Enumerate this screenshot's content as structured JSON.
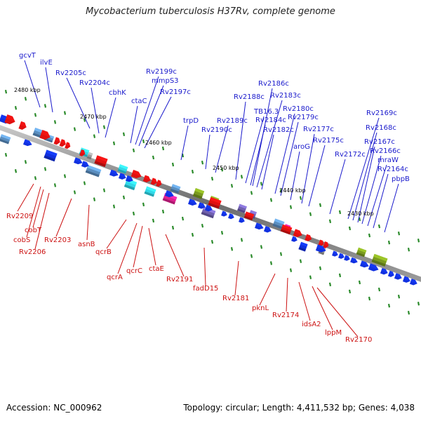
{
  "title": "Mycobacterium tuberculosis H37Rv, complete genome",
  "footer": {
    "accession": "Accession: NC_000962",
    "summary": "Topology: circular; Length: 4,411,532 bp; Genes: 4,038"
  },
  "colors": {
    "forward_label": "#1a1acc",
    "reverse_label": "#cc1111",
    "backbone": "#7a7a7a",
    "tick": "#2a8a2a",
    "gene_blue": "#1030e0",
    "gene_red": "#e01010",
    "gene_cyan": "#30d8e8",
    "gene_steel": "#5a8ec0",
    "gene_olive": "#7a9a20",
    "gene_magenta": "#e02090",
    "gene_purple": "#7060b0",
    "gene_gray": "#9a9a9a"
  },
  "scale_labels": [
    "2480 kbp",
    "2470 kbp",
    "2460 kbp",
    "2450 kbp",
    "2440 kbp",
    "2430 kbp"
  ],
  "forward_labels": [
    "gcvT",
    "ilvE",
    "Rv2205c",
    "Rv2204c",
    "cbhK",
    "ctaC",
    "Rv2199c",
    "mmpS3",
    "Rv2197c",
    "trpD",
    "Rv2190c",
    "Rv2189c",
    "Rv2188c",
    "TB16.3",
    "Rv2184c",
    "Rv2186c",
    "Rv2183c",
    "Rv2182c",
    "Rv2180c",
    "Rv2179c",
    "aroG",
    "Rv2177c",
    "Rv2175c",
    "Rv2172c",
    "Rv2169c",
    "Rv2168c",
    "Rv2167c",
    "Rv2166c",
    "mraW",
    "Rv2164c",
    "pbpB"
  ],
  "reverse_labels": [
    "Rv2209",
    "cobT",
    "cobS",
    "Rv2206",
    "Rv2203",
    "asnB",
    "qcrB",
    "qcrA",
    "qcrC",
    "ctaE",
    "Rv2191",
    "fadD15",
    "Rv2181",
    "pknL",
    "Rv2174",
    "idsA2",
    "lppM",
    "Rv2170"
  ]
}
